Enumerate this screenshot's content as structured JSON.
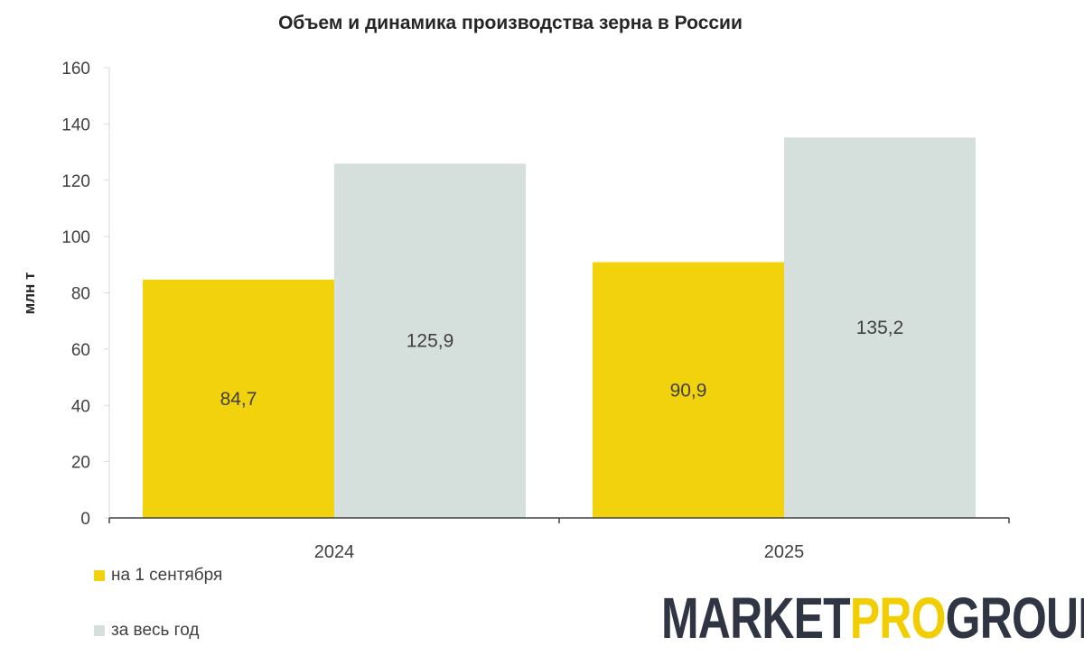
{
  "chart_data": {
    "type": "bar",
    "title": "Объем и динамика производства  зерна в России",
    "ylabel": "млн т",
    "xlabel": "",
    "categories": [
      "2024",
      "2025"
    ],
    "series": [
      {
        "name": "на 1 сентября",
        "values": [
          84.7,
          90.9
        ],
        "labels": [
          "84,7",
          "90,9"
        ],
        "color": "#f2d20c"
      },
      {
        "name": "за весь год",
        "values": [
          125.9,
          135.2
        ],
        "labels": [
          "125,9",
          "135,2"
        ],
        "color": "#d5dfdb"
      }
    ],
    "ylim": [
      0,
      160
    ],
    "yticks": [
      0,
      20,
      40,
      60,
      80,
      100,
      120,
      140,
      160
    ],
    "grid": false,
    "legend": "bottom-left"
  },
  "logo": {
    "part1": "MARKET",
    "part2": "PRO",
    "part3": "GROUP"
  },
  "colors": {
    "axis": "#404040",
    "text": "#404040",
    "logo_dark": "#2f3542",
    "logo_accent": "#f2cd00"
  }
}
